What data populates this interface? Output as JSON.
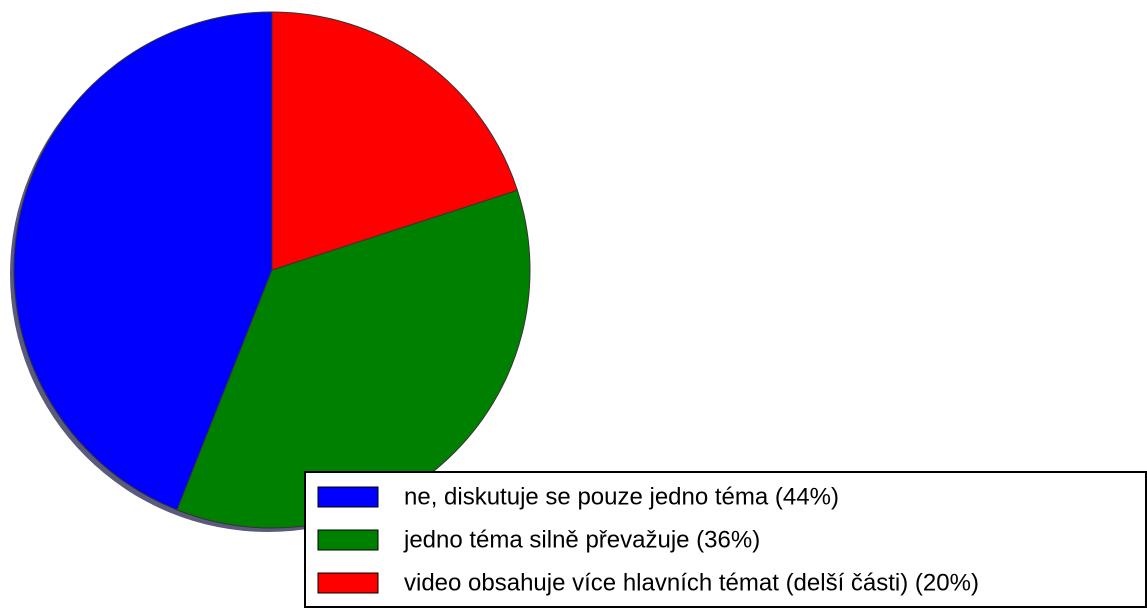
{
  "chart_data": {
    "type": "pie",
    "categories": [
      "ne, diskutuje se pouze jedno téma (44%)",
      "jedno téma silně převažuje (36%)",
      "video obsahuje více hlavních témat (delší části) (20%)"
    ],
    "values": [
      44,
      36,
      20
    ],
    "colors": [
      "#0000ff",
      "#008000",
      "#ff0000"
    ]
  }
}
